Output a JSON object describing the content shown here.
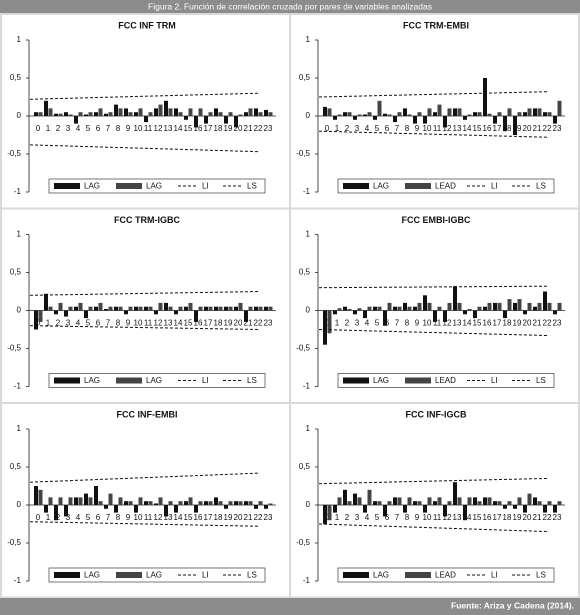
{
  "header": {
    "title": "Figura 2. Función de correlación cruzada por pares de variables analizadas"
  },
  "footer": {
    "source": "Fuente: Ariza y Cadena (2014)."
  },
  "chart_data": [
    {
      "type": "bar",
      "title": "FCC INF TRM",
      "categories": [
        "0",
        "1",
        "2",
        "3",
        "4",
        "5",
        "6",
        "7",
        "8",
        "9",
        "10",
        "11",
        "12",
        "13",
        "14",
        "15",
        "16",
        "17",
        "18",
        "19",
        "20",
        "21",
        "22",
        "23"
      ],
      "series": [
        {
          "name": "LAG",
          "color": "#111111",
          "values": [
            0.05,
            0.2,
            0.03,
            0.05,
            -0.1,
            0.02,
            0.05,
            0.03,
            0.15,
            0.1,
            0.05,
            -0.08,
            0.1,
            0.2,
            0.1,
            -0.05,
            -0.15,
            -0.1,
            0.1,
            -0.1,
            -0.15,
            0.05,
            0.1,
            0.08
          ]
        },
        {
          "name": "LAG",
          "color": "#444444",
          "values": [
            0.05,
            0.1,
            0.03,
            0.02,
            0.05,
            0.05,
            0.1,
            0.05,
            0.1,
            0.05,
            0.1,
            0.05,
            0.15,
            0.1,
            0.05,
            0.1,
            0.1,
            0.05,
            0.05,
            0.05,
            0.02,
            0.1,
            0.05,
            0.05
          ]
        }
      ],
      "reference_lines": [
        {
          "name": "LI",
          "color": "#111111",
          "dashed": true,
          "x": [
            0,
            23
          ],
          "values": [
            -0.38,
            -0.47
          ]
        },
        {
          "name": "LS",
          "color": "#111111",
          "dashed": true,
          "x": [
            0,
            23
          ],
          "values": [
            0.22,
            0.3
          ]
        }
      ],
      "ylim": [
        -1,
        1
      ],
      "yticks": [
        -1,
        {
          "value": -0.5,
          "label": "-0,5"
        },
        0,
        {
          "value": 0.5,
          "label": "0,5"
        },
        1
      ]
    },
    {
      "type": "bar",
      "title": "FCC TRM-EMBI",
      "categories": [
        "0",
        "1",
        "2",
        "3",
        "4",
        "5",
        "6",
        "7",
        "8",
        "9",
        "10",
        "11",
        "12",
        "13",
        "14",
        "15",
        "16",
        "17",
        "18",
        "19",
        "20",
        "21",
        "22",
        "23"
      ],
      "series": [
        {
          "name": "LAG",
          "color": "#111111",
          "values": [
            0.12,
            -0.05,
            0.05,
            -0.05,
            0.02,
            -0.05,
            0.03,
            -0.08,
            0.1,
            -0.1,
            -0.1,
            0.05,
            -0.15,
            0.1,
            -0.05,
            0.05,
            0.5,
            -0.1,
            -0.2,
            -0.25,
            0.05,
            0.1,
            0.05,
            -0.1
          ]
        },
        {
          "name": "LEAD",
          "color": "#444444",
          "values": [
            0.1,
            0.02,
            0.05,
            0.02,
            0.05,
            0.2,
            0.02,
            0.05,
            0.02,
            0.05,
            0.1,
            0.15,
            0.1,
            0.1,
            0.02,
            0.05,
            0.03,
            0.05,
            0.1,
            0.05,
            0.1,
            0.1,
            0.05,
            0.2
          ]
        }
      ],
      "reference_lines": [
        {
          "name": "LI",
          "color": "#111111",
          "dashed": true,
          "x": [
            0,
            23
          ],
          "values": [
            -0.2,
            -0.28
          ]
        },
        {
          "name": "LS",
          "color": "#111111",
          "dashed": true,
          "x": [
            0,
            23
          ],
          "values": [
            0.25,
            0.32
          ]
        }
      ],
      "ylim": [
        -1,
        1
      ],
      "yticks": [
        -1,
        {
          "value": -0.5,
          "label": "-0,5"
        },
        0,
        {
          "value": 0.5,
          "label": "0,5"
        },
        1
      ]
    },
    {
      "type": "bar",
      "title": "FCC TRM-IGBC",
      "categories": [
        "0",
        "1",
        "2",
        "3",
        "4",
        "5",
        "6",
        "7",
        "8",
        "9",
        "10",
        "11",
        "12",
        "13",
        "14",
        "15",
        "16",
        "17",
        "18",
        "19",
        "20",
        "21",
        "22",
        "23"
      ],
      "series": [
        {
          "name": "LAG",
          "color": "#111111",
          "values": [
            -0.25,
            0.22,
            -0.05,
            -0.08,
            0.05,
            -0.1,
            0.05,
            0.02,
            0.05,
            -0.05,
            0.05,
            0.05,
            -0.05,
            0.1,
            -0.05,
            0.05,
            -0.15,
            0.05,
            0.05,
            0.05,
            0.05,
            -0.15,
            0.05,
            0.05
          ]
        },
        {
          "name": "LAG",
          "color": "#444444",
          "values": [
            -0.15,
            0.05,
            0.1,
            0.05,
            0.1,
            0.05,
            0.1,
            0.05,
            0.05,
            0.05,
            0.05,
            0.05,
            0.1,
            0.05,
            0.05,
            0.1,
            0.05,
            0.05,
            0.05,
            0.05,
            0.1,
            0.05,
            0.05,
            0.05
          ]
        }
      ],
      "reference_lines": [
        {
          "name": "LI",
          "color": "#111111",
          "dashed": true,
          "x": [
            0,
            23
          ],
          "values": [
            -0.2,
            -0.25
          ]
        },
        {
          "name": "LS",
          "color": "#111111",
          "dashed": true,
          "x": [
            0,
            23
          ],
          "values": [
            0.2,
            0.25
          ]
        }
      ],
      "ylim": [
        -1,
        1
      ],
      "yticks": [
        -1,
        {
          "value": -0.5,
          "label": "-0,5"
        },
        0,
        {
          "value": 0.5,
          "label": "0,5"
        },
        1
      ]
    },
    {
      "type": "bar",
      "title": "FCC EMBI-IGBC",
      "categories": [
        "0",
        "1",
        "2",
        "3",
        "4",
        "5",
        "6",
        "7",
        "8",
        "9",
        "10",
        "11",
        "12",
        "13",
        "14",
        "15",
        "16",
        "17",
        "18",
        "19",
        "20",
        "21",
        "22",
        "23"
      ],
      "series": [
        {
          "name": "LAG",
          "color": "#111111",
          "values": [
            -0.45,
            -0.05,
            0.05,
            -0.05,
            -0.1,
            0.05,
            -0.2,
            0.05,
            0.1,
            0.05,
            0.2,
            -0.15,
            -0.15,
            0.32,
            -0.05,
            -0.1,
            0.05,
            0.1,
            -0.1,
            0.1,
            -0.05,
            0.05,
            0.25,
            -0.05
          ]
        },
        {
          "name": "LEAD",
          "color": "#444444",
          "values": [
            -0.3,
            0.03,
            0.02,
            0.03,
            0.05,
            0.05,
            0.1,
            0.05,
            0.05,
            0.1,
            0.1,
            0.05,
            0.1,
            0.1,
            0.02,
            0.05,
            0.1,
            0.1,
            0.15,
            0.15,
            0.1,
            0.1,
            0.1,
            0.1
          ]
        }
      ],
      "reference_lines": [
        {
          "name": "LI",
          "color": "#111111",
          "dashed": true,
          "x": [
            0,
            23
          ],
          "values": [
            -0.25,
            -0.33
          ]
        },
        {
          "name": "LS",
          "color": "#111111",
          "dashed": true,
          "x": [
            0,
            23
          ],
          "values": [
            0.3,
            0.32
          ]
        }
      ],
      "ylim": [
        -1,
        1
      ],
      "yticks": [
        -1,
        {
          "value": -0.5,
          "label": "-0,5"
        },
        0,
        {
          "value": 0.5,
          "label": "0,5"
        },
        1
      ]
    },
    {
      "type": "bar",
      "title": "FCC INF-EMBI",
      "categories": [
        "0",
        "1",
        "2",
        "3",
        "4",
        "5",
        "6",
        "7",
        "8",
        "9",
        "10",
        "11",
        "12",
        "13",
        "14",
        "15",
        "16",
        "17",
        "18",
        "19",
        "20",
        "21",
        "22",
        "23"
      ],
      "series": [
        {
          "name": "LAG",
          "color": "#111111",
          "values": [
            0.25,
            -0.1,
            -0.2,
            -0.15,
            0.1,
            0.15,
            0.25,
            -0.05,
            -0.1,
            0.05,
            -0.1,
            0.05,
            0.02,
            -0.15,
            -0.1,
            0.05,
            -0.1,
            0.05,
            0.1,
            -0.05,
            0.05,
            0.05,
            -0.05,
            -0.05
          ]
        },
        {
          "name": "LAG",
          "color": "#444444",
          "values": [
            0.2,
            0.1,
            0.1,
            0.1,
            0.1,
            0.1,
            0.05,
            0.15,
            0.1,
            0.05,
            0.1,
            0.05,
            0.1,
            0.05,
            0.05,
            0.1,
            0.05,
            0.05,
            0.05,
            0.05,
            0.05,
            0.05,
            0.05,
            0.02
          ]
        }
      ],
      "reference_lines": [
        {
          "name": "LI",
          "color": "#111111",
          "dashed": true,
          "x": [
            0,
            23
          ],
          "values": [
            -0.22,
            -0.28
          ]
        },
        {
          "name": "LS",
          "color": "#111111",
          "dashed": true,
          "x": [
            0,
            23
          ],
          "values": [
            0.3,
            0.42
          ]
        }
      ],
      "ylim": [
        -1,
        1
      ],
      "yticks": [
        -1,
        {
          "value": -0.5,
          "label": "-0,5"
        },
        0,
        {
          "value": 0.5,
          "label": "0,5"
        },
        1
      ]
    },
    {
      "type": "bar",
      "title": "FCC INF-IGCB",
      "categories": [
        "0",
        "1",
        "2",
        "3",
        "4",
        "5",
        "6",
        "7",
        "8",
        "9",
        "10",
        "11",
        "12",
        "13",
        "14",
        "15",
        "16",
        "17",
        "18",
        "19",
        "20",
        "21",
        "22",
        "23"
      ],
      "series": [
        {
          "name": "LAG",
          "color": "#111111",
          "values": [
            -0.25,
            -0.1,
            0.2,
            0.15,
            -0.1,
            0.05,
            -0.15,
            0.1,
            -0.1,
            0.05,
            -0.1,
            0.05,
            -0.15,
            0.3,
            -0.2,
            0.1,
            0.1,
            0.05,
            -0.05,
            -0.05,
            -0.1,
            0.1,
            -0.1,
            -0.1
          ]
        },
        {
          "name": "LEAD",
          "color": "#444444",
          "values": [
            -0.2,
            0.1,
            0.05,
            0.1,
            0.2,
            0.05,
            0.05,
            0.1,
            0.1,
            0.05,
            0.1,
            0.1,
            0.05,
            0.1,
            0.1,
            0.05,
            0.1,
            0.05,
            0.05,
            0.1,
            0.15,
            0.05,
            0.05,
            0.05
          ]
        }
      ],
      "reference_lines": [
        {
          "name": "LI",
          "color": "#111111",
          "dashed": true,
          "x": [
            0,
            23
          ],
          "values": [
            -0.25,
            -0.35
          ]
        },
        {
          "name": "LS",
          "color": "#111111",
          "dashed": true,
          "x": [
            0,
            23
          ],
          "values": [
            0.28,
            0.35
          ]
        }
      ],
      "ylim": [
        -1,
        1
      ],
      "yticks": [
        -1,
        {
          "value": -0.5,
          "label": "-0,5"
        },
        0,
        {
          "value": 0.5,
          "label": "0,5"
        },
        1
      ]
    }
  ]
}
